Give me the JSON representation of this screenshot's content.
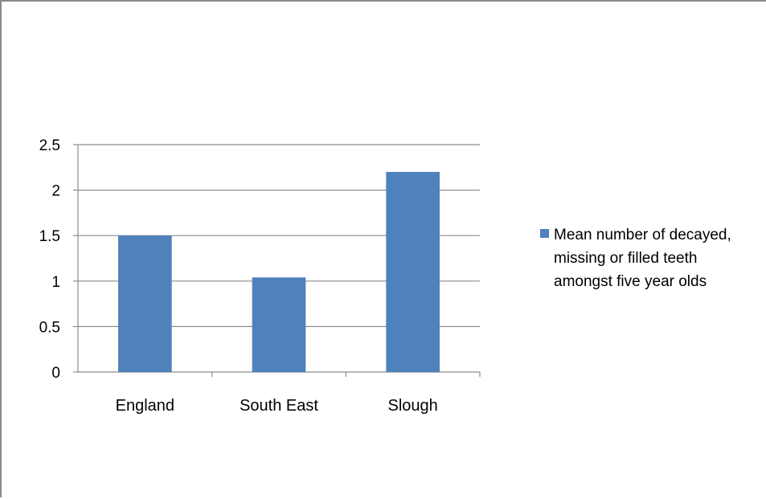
{
  "chart_data": {
    "type": "bar",
    "categories": [
      "England",
      "South East",
      "Slough"
    ],
    "series": [
      {
        "name": "Mean number of decayed, missing or filled teeth amongst five year olds",
        "values": [
          1.5,
          1.04,
          2.2
        ],
        "color": "#4F81BD"
      }
    ],
    "ylim": [
      0,
      2.5
    ],
    "yticks": [
      "0",
      "0.5",
      "1",
      "1.5",
      "2",
      "2.5"
    ],
    "ytick_values": [
      0,
      0.5,
      1,
      1.5,
      2,
      2.5
    ],
    "grid": true,
    "legend_position": "right",
    "legend_lines": [
      "Mean number of decayed,",
      "missing or filled teeth",
      "amongst five year olds"
    ]
  }
}
